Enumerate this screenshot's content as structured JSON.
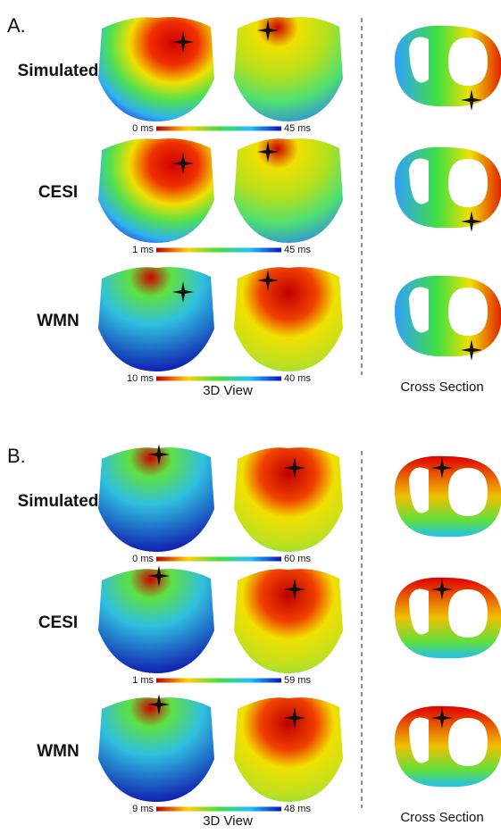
{
  "panels": [
    {
      "label": "A.",
      "rows": [
        {
          "name": "Simulated",
          "min": "0 ms",
          "max": "45 ms"
        },
        {
          "name": "CESI",
          "min": "1 ms",
          "max": "45 ms"
        },
        {
          "name": "WMN",
          "min": "10 ms",
          "max": "40 ms"
        }
      ],
      "view_label": "3D View",
      "cross_label": "Cross Section"
    },
    {
      "label": "B.",
      "rows": [
        {
          "name": "Simulated",
          "min": "0 ms",
          "max": "60 ms"
        },
        {
          "name": "CESI",
          "min": "1 ms",
          "max": "59 ms"
        },
        {
          "name": "WMN",
          "min": "9 ms",
          "max": "48 ms"
        }
      ],
      "view_label": "3D View",
      "cross_label": "Cross Section"
    }
  ]
}
